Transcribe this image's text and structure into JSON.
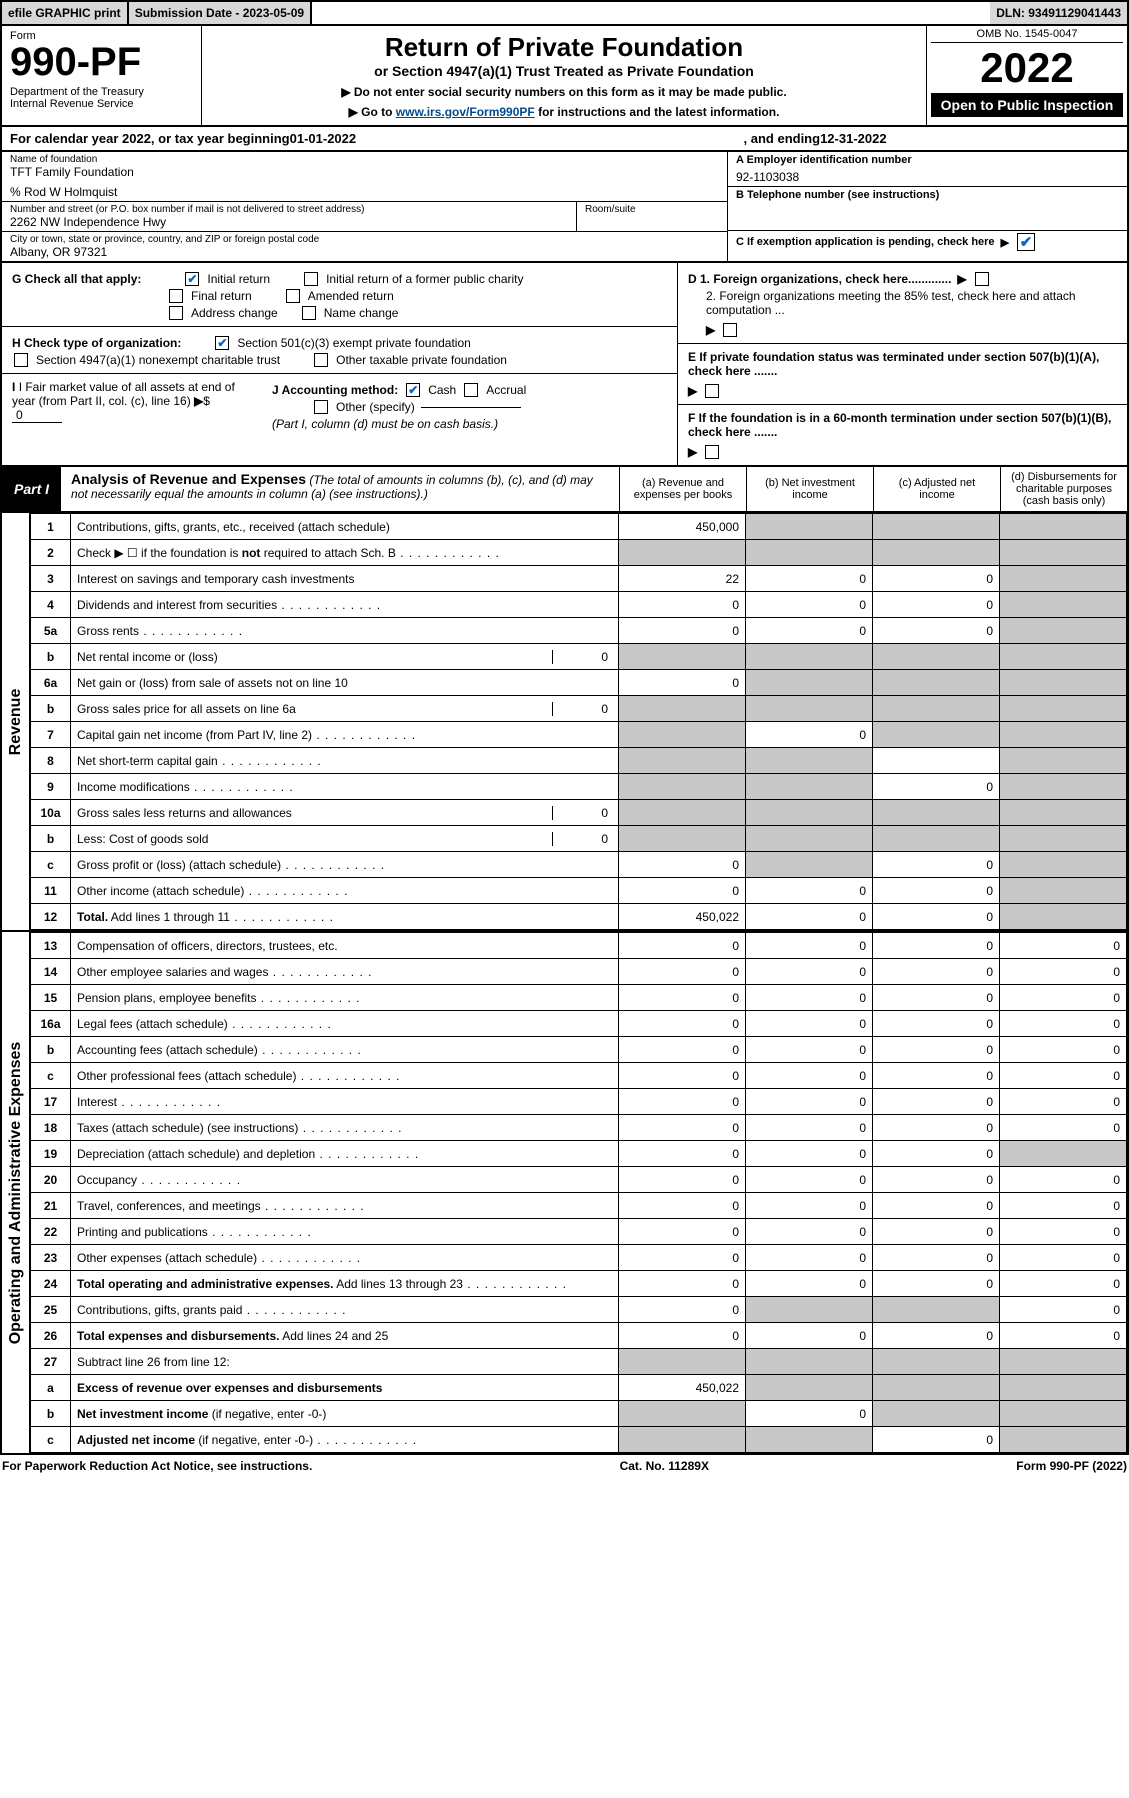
{
  "top": {
    "efile": "efile GRAPHIC print",
    "submission_label": "Submission Date - 2023-05-09",
    "dln": "DLN: 93491129041443"
  },
  "header": {
    "form_word": "Form",
    "form_num": "990-PF",
    "dept": "Department of the Treasury\nInternal Revenue Service",
    "title": "Return of Private Foundation",
    "subtitle": "or Section 4947(a)(1) Trust Treated as Private Foundation",
    "note1": "▶ Do not enter social security numbers on this form as it may be made public.",
    "note2_pre": "▶ Go to ",
    "note2_link": "www.irs.gov/Form990PF",
    "note2_post": " for instructions and the latest information.",
    "omb": "OMB No. 1545-0047",
    "year": "2022",
    "open": "Open to Public Inspection"
  },
  "calendar": {
    "pre": "For calendar year 2022, or tax year beginning ",
    "begin": "01-01-2022",
    "mid": " , and ending ",
    "end": "12-31-2022"
  },
  "info": {
    "name_label": "Name of foundation",
    "name": "TFT Family Foundation",
    "care_of": "% Rod W Holmquist",
    "addr_label": "Number and street (or P.O. box number if mail is not delivered to street address)",
    "addr": "2262 NW Independence Hwy",
    "room_label": "Room/suite",
    "city_label": "City or town, state or province, country, and ZIP or foreign postal code",
    "city": "Albany, OR  97321",
    "A_label": "A Employer identification number",
    "A_val": "92-1103038",
    "B_label": "B Telephone number (see instructions)",
    "C_label": "C If exemption application is pending, check here",
    "D1": "D 1. Foreign organizations, check here.............",
    "D2": "2. Foreign organizations meeting the 85% test, check here and attach computation ...",
    "E": "E   If private foundation status was terminated under section 507(b)(1)(A), check here .......",
    "F": "F   If the foundation is in a 60-month termination under section 507(b)(1)(B), check here .......",
    "G_label": "G Check all that apply:",
    "G_opts": [
      "Initial return",
      "Initial return of a former public charity",
      "Final return",
      "Amended return",
      "Address change",
      "Name change"
    ],
    "H_label": "H Check type of organization:",
    "H_opts": [
      "Section 501(c)(3) exempt private foundation",
      "Section 4947(a)(1) nonexempt charitable trust",
      "Other taxable private foundation"
    ],
    "I_label": "I Fair market value of all assets at end of year (from Part II, col. (c), line 16)",
    "I_val": "0",
    "J_label": "J Accounting method:",
    "J_cash": "Cash",
    "J_accrual": "Accrual",
    "J_other": "Other (specify)",
    "J_note": "(Part I, column (d) must be on cash basis.)"
  },
  "part1": {
    "label": "Part I",
    "title": "Analysis of Revenue and Expenses",
    "title_note": " (The total of amounts in columns (b), (c), and (d) may not necessarily equal the amounts in column (a) (see instructions).)",
    "col_a": "(a) Revenue and expenses per books",
    "col_b": "(b) Net investment income",
    "col_c": "(c) Adjusted net income",
    "col_d": "(d) Disbursements for charitable purposes (cash basis only)"
  },
  "sections": {
    "revenue": "Revenue",
    "expenses": "Operating and Administrative Expenses"
  },
  "rows": [
    {
      "n": "1",
      "d": "Contributions, gifts, grants, etc., received (attach schedule)",
      "a": "450,000",
      "b": "shade",
      "c": "shade",
      "dd": "shade"
    },
    {
      "n": "2",
      "d": "Check ▶ ☐ if the foundation is <b>not</b> required to attach Sch. B",
      "dots": true,
      "a": "shade",
      "b": "shade",
      "c": "shade",
      "dd": "shade"
    },
    {
      "n": "3",
      "d": "Interest on savings and temporary cash investments",
      "a": "22",
      "b": "0",
      "c": "0",
      "dd": "shade"
    },
    {
      "n": "4",
      "d": "Dividends and interest from securities",
      "dots": true,
      "a": "0",
      "b": "0",
      "c": "0",
      "dd": "shade"
    },
    {
      "n": "5a",
      "d": "Gross rents",
      "dots": true,
      "a": "0",
      "b": "0",
      "c": "0",
      "dd": "shade"
    },
    {
      "n": "b",
      "d": "Net rental income or (loss)",
      "inline": "0",
      "a": "shade",
      "b": "shade",
      "c": "shade",
      "dd": "shade"
    },
    {
      "n": "6a",
      "d": "Net gain or (loss) from sale of assets not on line 10",
      "a": "0",
      "b": "shade",
      "c": "shade",
      "dd": "shade"
    },
    {
      "n": "b",
      "d": "Gross sales price for all assets on line 6a",
      "inline": "0",
      "a": "shade",
      "b": "shade",
      "c": "shade",
      "dd": "shade"
    },
    {
      "n": "7",
      "d": "Capital gain net income (from Part IV, line 2)",
      "dots": true,
      "a": "shade",
      "b": "0",
      "c": "shade",
      "dd": "shade"
    },
    {
      "n": "8",
      "d": "Net short-term capital gain",
      "dots": true,
      "a": "shade",
      "b": "shade",
      "c": "",
      "dd": "shade"
    },
    {
      "n": "9",
      "d": "Income modifications",
      "dots": true,
      "a": "shade",
      "b": "shade",
      "c": "0",
      "dd": "shade"
    },
    {
      "n": "10a",
      "d": "Gross sales less returns and allowances",
      "inline": "0",
      "a": "shade",
      "b": "shade",
      "c": "shade",
      "dd": "shade"
    },
    {
      "n": "b",
      "d": "Less: Cost of goods sold",
      "dots": true,
      "inline": "0",
      "a": "shade",
      "b": "shade",
      "c": "shade",
      "dd": "shade"
    },
    {
      "n": "c",
      "d": "Gross profit or (loss) (attach schedule)",
      "dots": true,
      "a": "0",
      "b": "shade",
      "c": "0",
      "dd": "shade"
    },
    {
      "n": "11",
      "d": "Other income (attach schedule)",
      "dots": true,
      "a": "0",
      "b": "0",
      "c": "0",
      "dd": "shade"
    },
    {
      "n": "12",
      "d": "<b>Total.</b> Add lines 1 through 11",
      "dots": true,
      "a": "450,022",
      "b": "0",
      "c": "0",
      "dd": "shade"
    }
  ],
  "exp_rows": [
    {
      "n": "13",
      "d": "Compensation of officers, directors, trustees, etc.",
      "a": "0",
      "b": "0",
      "c": "0",
      "dd": "0"
    },
    {
      "n": "14",
      "d": "Other employee salaries and wages",
      "dots": true,
      "a": "0",
      "b": "0",
      "c": "0",
      "dd": "0"
    },
    {
      "n": "15",
      "d": "Pension plans, employee benefits",
      "dots": true,
      "a": "0",
      "b": "0",
      "c": "0",
      "dd": "0"
    },
    {
      "n": "16a",
      "d": "Legal fees (attach schedule)",
      "dots": true,
      "a": "0",
      "b": "0",
      "c": "0",
      "dd": "0"
    },
    {
      "n": "b",
      "d": "Accounting fees (attach schedule)",
      "dots": true,
      "a": "0",
      "b": "0",
      "c": "0",
      "dd": "0"
    },
    {
      "n": "c",
      "d": "Other professional fees (attach schedule)",
      "dots": true,
      "a": "0",
      "b": "0",
      "c": "0",
      "dd": "0"
    },
    {
      "n": "17",
      "d": "Interest",
      "dots": true,
      "a": "0",
      "b": "0",
      "c": "0",
      "dd": "0"
    },
    {
      "n": "18",
      "d": "Taxes (attach schedule) (see instructions)",
      "dots": true,
      "a": "0",
      "b": "0",
      "c": "0",
      "dd": "0"
    },
    {
      "n": "19",
      "d": "Depreciation (attach schedule) and depletion",
      "dots": true,
      "a": "0",
      "b": "0",
      "c": "0",
      "dd": "shade"
    },
    {
      "n": "20",
      "d": "Occupancy",
      "dots": true,
      "a": "0",
      "b": "0",
      "c": "0",
      "dd": "0"
    },
    {
      "n": "21",
      "d": "Travel, conferences, and meetings",
      "dots": true,
      "a": "0",
      "b": "0",
      "c": "0",
      "dd": "0"
    },
    {
      "n": "22",
      "d": "Printing and publications",
      "dots": true,
      "a": "0",
      "b": "0",
      "c": "0",
      "dd": "0"
    },
    {
      "n": "23",
      "d": "Other expenses (attach schedule)",
      "dots": true,
      "a": "0",
      "b": "0",
      "c": "0",
      "dd": "0"
    },
    {
      "n": "24",
      "d": "<b>Total operating and administrative expenses.</b> Add lines 13 through 23",
      "dots": true,
      "a": "0",
      "b": "0",
      "c": "0",
      "dd": "0"
    },
    {
      "n": "25",
      "d": "Contributions, gifts, grants paid",
      "dots": true,
      "a": "0",
      "b": "shade",
      "c": "shade",
      "dd": "0"
    },
    {
      "n": "26",
      "d": "<b>Total expenses and disbursements.</b> Add lines 24 and 25",
      "a": "0",
      "b": "0",
      "c": "0",
      "dd": "0"
    },
    {
      "n": "27",
      "d": "Subtract line 26 from line 12:",
      "a": "shade",
      "b": "shade",
      "c": "shade",
      "dd": "shade"
    },
    {
      "n": "a",
      "d": "<b>Excess of revenue over expenses and disbursements</b>",
      "a": "450,022",
      "b": "shade",
      "c": "shade",
      "dd": "shade"
    },
    {
      "n": "b",
      "d": "<b>Net investment income</b> (if negative, enter -0-)",
      "a": "shade",
      "b": "0",
      "c": "shade",
      "dd": "shade"
    },
    {
      "n": "c",
      "d": "<b>Adjusted net income</b> (if negative, enter -0-)",
      "dots": true,
      "a": "shade",
      "b": "shade",
      "c": "0",
      "dd": "shade"
    }
  ],
  "footer": {
    "left": "For Paperwork Reduction Act Notice, see instructions.",
    "mid": "Cat. No. 11289X",
    "right": "Form 990-PF (2022)"
  },
  "checked": {
    "C": true,
    "initial_return": true,
    "sec501": true,
    "cash": true
  }
}
